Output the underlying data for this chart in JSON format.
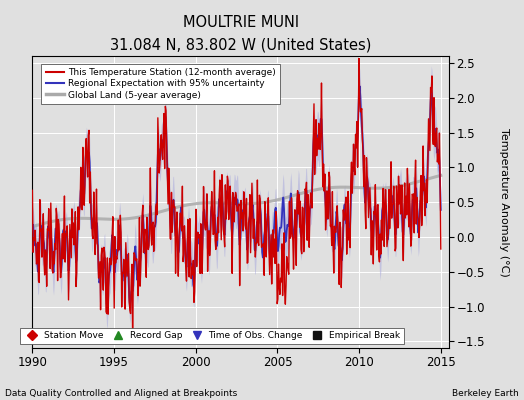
{
  "title": "MOULTRIE MUNI",
  "subtitle": "31.084 N, 83.802 W (United States)",
  "ylabel": "Temperature Anomaly (°C)",
  "xlabel_left": "Data Quality Controlled and Aligned at Breakpoints",
  "xlabel_right": "Berkeley Earth",
  "xlim": [
    1990,
    2015.5
  ],
  "ylim": [
    -1.6,
    2.6
  ],
  "yticks": [
    -1.5,
    -1.0,
    -0.5,
    0,
    0.5,
    1.0,
    1.5,
    2.0,
    2.5
  ],
  "xticks": [
    1990,
    1995,
    2000,
    2005,
    2010,
    2015
  ],
  "bg_color": "#e0e0e0",
  "grid_color": "#ffffff",
  "regional_fill_color": "#aaaadd",
  "regional_line_color": "#3333bb",
  "station_line_color": "#cc0000",
  "global_line_color": "#aaaaaa",
  "legend_labels": [
    "This Temperature Station (12-month average)",
    "Regional Expectation with 95% uncertainty",
    "Global Land (5-year average)"
  ],
  "marker_legend": [
    {
      "label": "Station Move",
      "marker": "D",
      "color": "#cc0000"
    },
    {
      "label": "Record Gap",
      "marker": "^",
      "color": "#228822"
    },
    {
      "label": "Time of Obs. Change",
      "marker": "v",
      "color": "#3333bb"
    },
    {
      "label": "Empirical Break",
      "marker": "s",
      "color": "#111111"
    }
  ]
}
